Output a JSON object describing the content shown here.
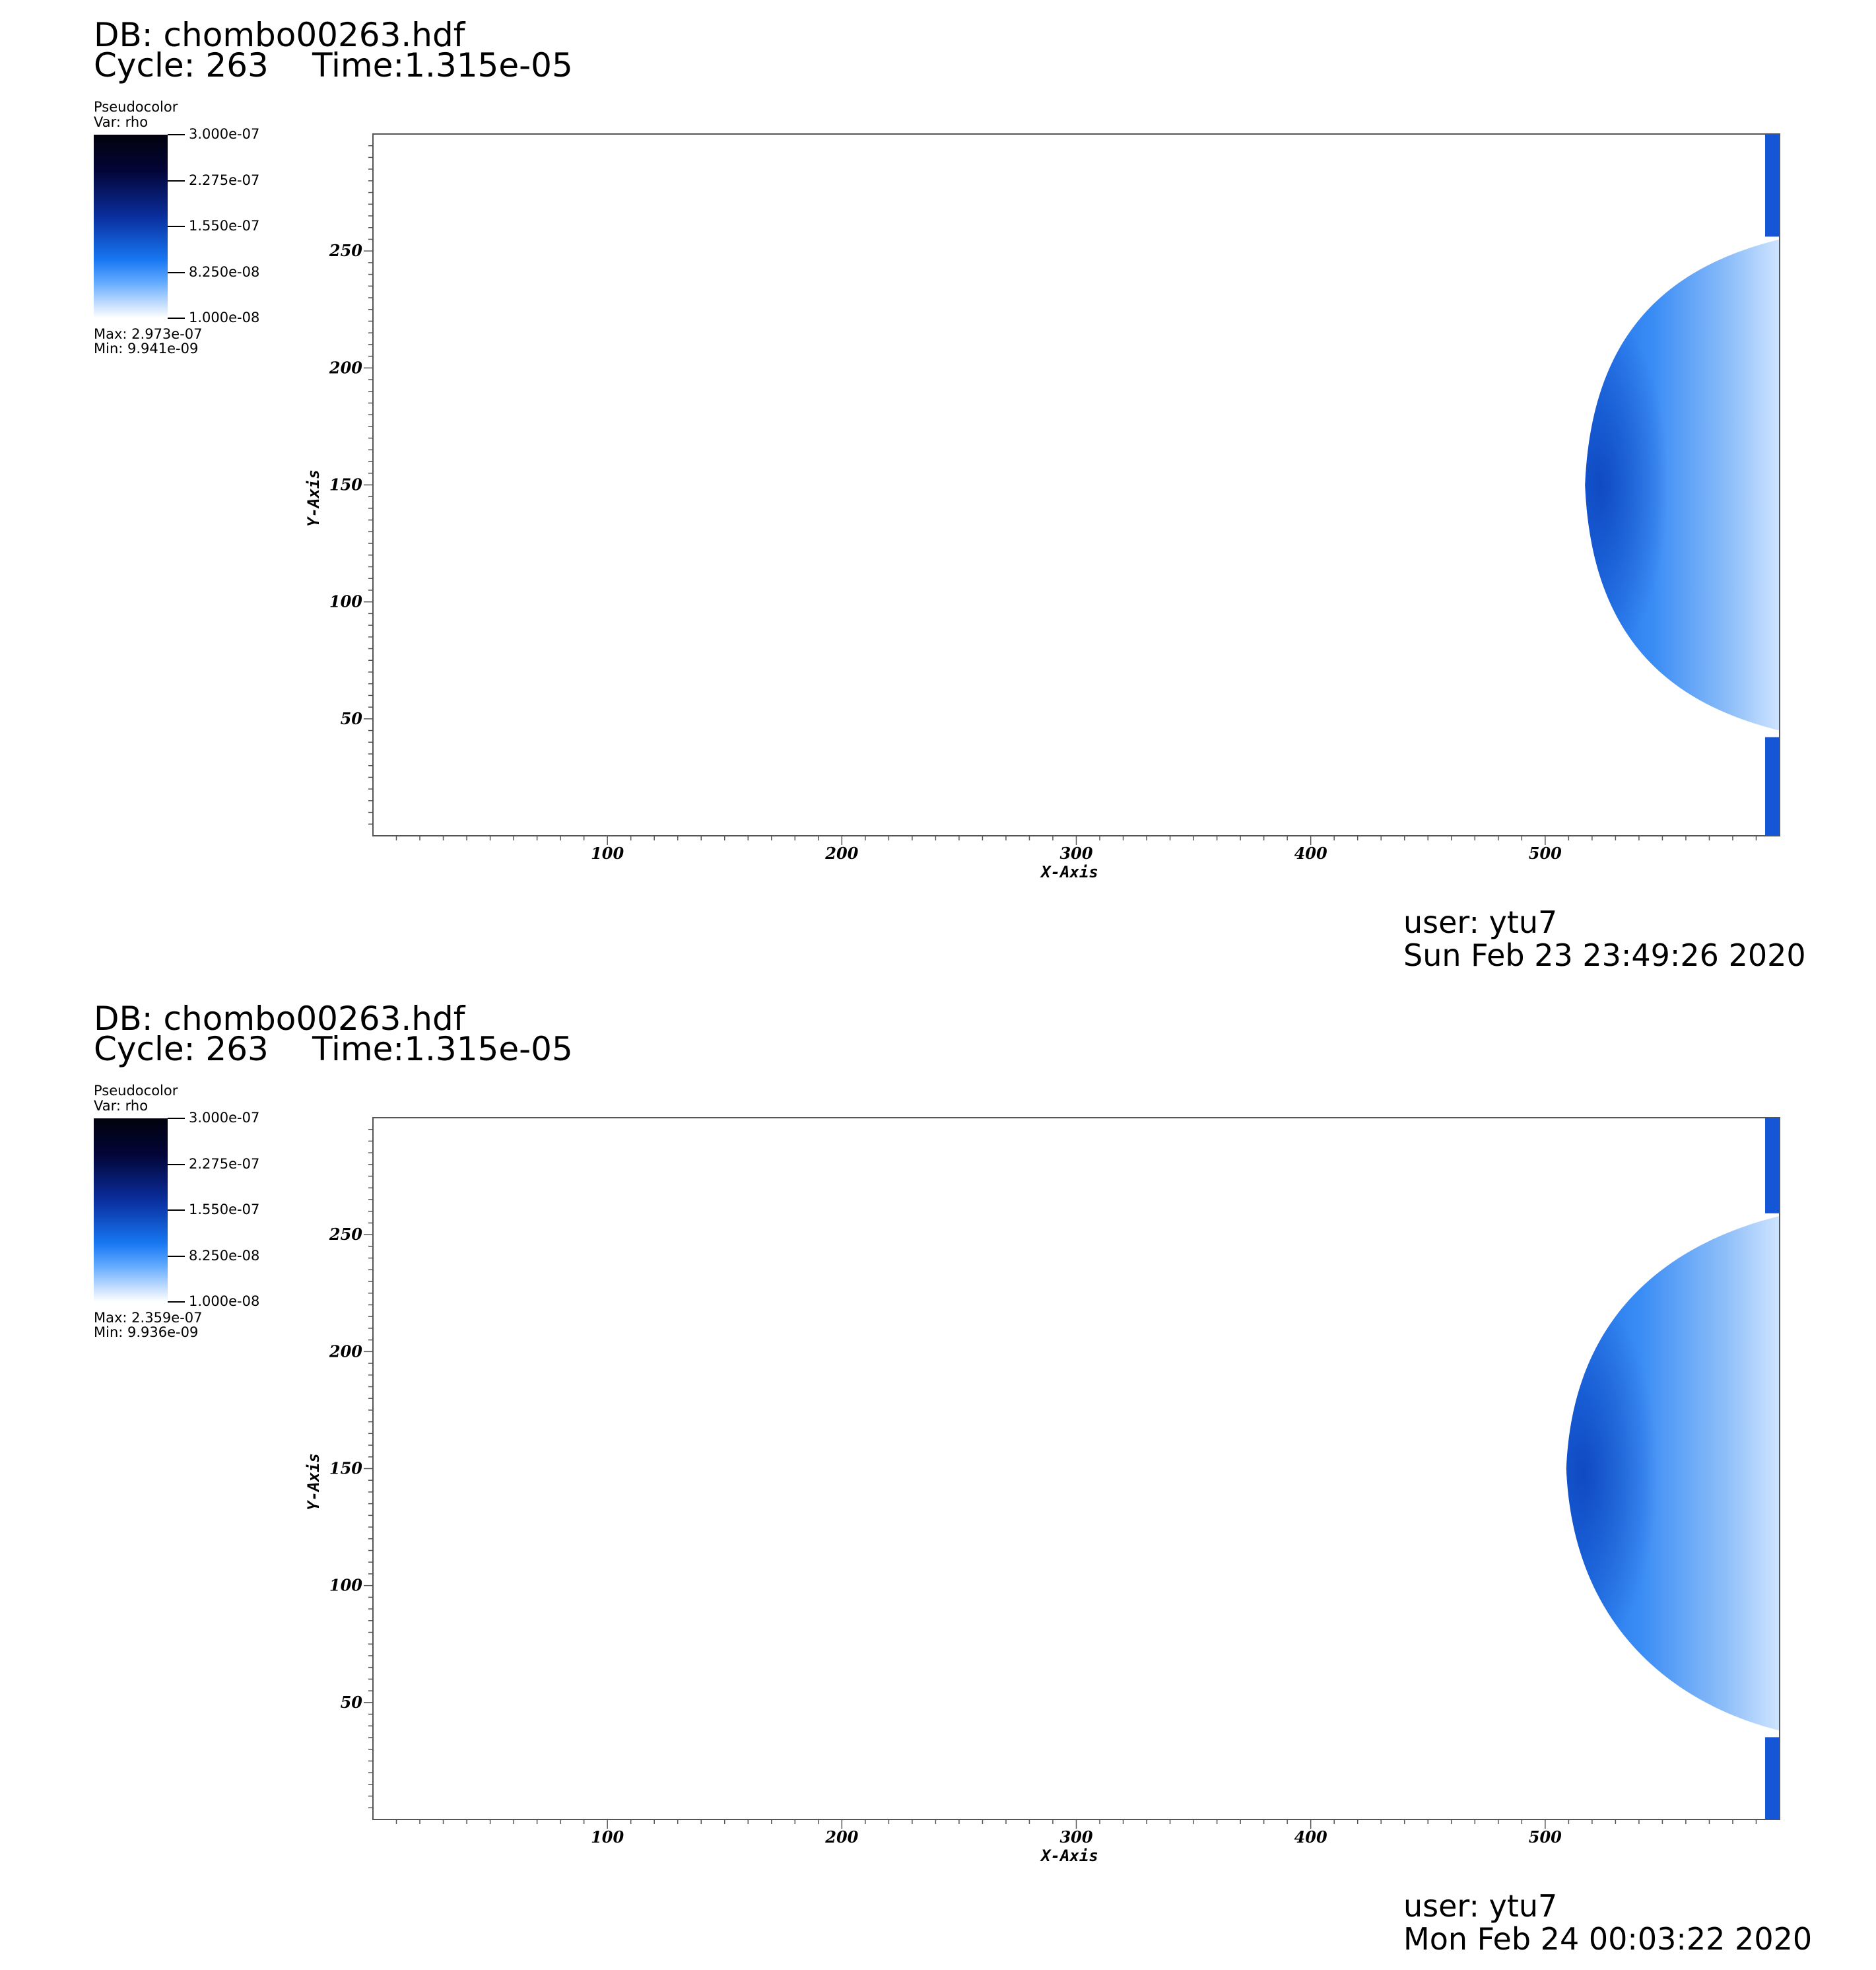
{
  "panels": [
    {
      "db_label": "DB: chombo00263.hdf",
      "cycle_label": "Cycle: 263",
      "time_label": "Time:1.315e-05",
      "legend": {
        "title": "Pseudocolor",
        "var": "Var: rho",
        "ticks": [
          "3.000e-07",
          "2.275e-07",
          "1.550e-07",
          "8.250e-08",
          "1.000e-08"
        ],
        "max": "Max:  2.973e-07",
        "min": "Min:  9.941e-09"
      },
      "user": "user: ytu7",
      "date": "Sun Feb 23 23:49:26 2020"
    },
    {
      "db_label": "DB: chombo00263.hdf",
      "cycle_label": "Cycle: 263",
      "time_label": "Time:1.315e-05",
      "legend": {
        "title": "Pseudocolor",
        "var": "Var: rho",
        "ticks": [
          "3.000e-07",
          "2.275e-07",
          "1.550e-07",
          "8.250e-08",
          "1.000e-08"
        ],
        "max": "Max:  2.359e-07",
        "min": "Min:  9.936e-09"
      },
      "user": "user: ytu7",
      "date": "Mon Feb 24 00:03:22 2020"
    }
  ],
  "chart_data": [
    {
      "type": "heatmap",
      "variable": "rho",
      "colormap": [
        "#000000",
        "#03053a",
        "#0b2fa3",
        "#1777f2",
        "#ffffff"
      ],
      "color_range": [
        1e-08,
        3e-07
      ],
      "data_max": 2.973e-07,
      "data_min": 9.941e-09,
      "xlabel": "X-Axis",
      "ylabel": "Y-Axis",
      "xlim": [
        0,
        600
      ],
      "ylim": [
        0,
        300
      ],
      "xticks": [
        100,
        200,
        300,
        400,
        500
      ],
      "yticks": [
        50,
        100,
        150,
        200,
        250
      ],
      "feature": {
        "description_shape": "bow-shock",
        "apex": [
          517,
          150
        ],
        "top_reach": [
          600,
          255
        ],
        "bottom_reach": [
          600,
          45
        ]
      }
    },
    {
      "type": "heatmap",
      "variable": "rho",
      "colormap": [
        "#000000",
        "#03053a",
        "#0b2fa3",
        "#1777f2",
        "#ffffff"
      ],
      "color_range": [
        1e-08,
        3e-07
      ],
      "data_max": 2.359e-07,
      "data_min": 9.936e-09,
      "xlabel": "X-Axis",
      "ylabel": "Y-Axis",
      "xlim": [
        0,
        600
      ],
      "ylim": [
        0,
        300
      ],
      "xticks": [
        100,
        200,
        300,
        400,
        500
      ],
      "yticks": [
        50,
        100,
        150,
        200,
        250
      ],
      "feature": {
        "description_shape": "bow-shock",
        "apex": [
          509,
          150
        ],
        "top_reach": [
          600,
          258
        ],
        "bottom_reach": [
          600,
          38
        ]
      }
    }
  ]
}
